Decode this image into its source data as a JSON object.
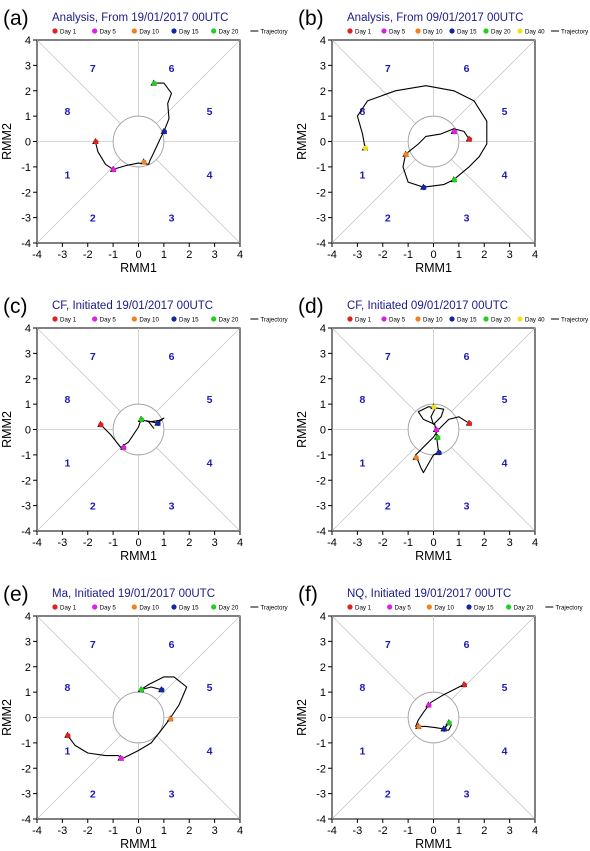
{
  "colors": {
    "day1": "#e3201b",
    "day5": "#e020e0",
    "day10": "#f08020",
    "day15": "#1028a0",
    "day20": "#20d020",
    "day40": "#f0e020",
    "phase_number": "#1a1ab8",
    "title": "#1a1a8c",
    "diagonal": "#c8c8c8",
    "circle": "#a0a0a0",
    "trajectory": "#000000"
  },
  "axis": {
    "xlabel": "RMM1",
    "ylabel": "RMM2",
    "xlim": [
      -4,
      4
    ],
    "ylim": [
      -4,
      4
    ],
    "ticks": [
      "-4",
      "-3",
      "-2",
      "-1",
      "0",
      "1",
      "2",
      "3",
      "4"
    ]
  },
  "chart_data": [
    {
      "id": "a",
      "letter": "(a)",
      "type": "line",
      "title": "Analysis, From 19/01/2017 00UTC",
      "legend": [
        {
          "label": "Day 1",
          "color": "day1"
        },
        {
          "label": "Day 5",
          "color": "day5"
        },
        {
          "label": "Day 10",
          "color": "day10"
        },
        {
          "label": "Day 15",
          "color": "day15"
        },
        {
          "label": "Day 20",
          "color": "day20"
        },
        {
          "label": "Trajectory",
          "color": "trajectory",
          "line": true
        }
      ],
      "phases": [
        "1",
        "2",
        "3",
        "4",
        "5",
        "6",
        "7",
        "8"
      ],
      "trajectory": [
        [
          -1.7,
          0.0
        ],
        [
          -1.6,
          -0.4
        ],
        [
          -1.3,
          -0.9
        ],
        [
          -1.0,
          -1.1
        ],
        [
          -0.5,
          -0.95
        ],
        [
          0.0,
          -0.85
        ],
        [
          0.4,
          -0.9
        ],
        [
          0.45,
          -0.75
        ],
        [
          0.6,
          -0.45
        ],
        [
          0.85,
          0.1
        ],
        [
          1.0,
          0.4
        ],
        [
          1.2,
          0.9
        ],
        [
          1.15,
          1.5
        ],
        [
          1.3,
          1.9
        ],
        [
          1.0,
          2.3
        ],
        [
          0.6,
          2.3
        ]
      ],
      "markers": [
        {
          "day": "Day 1",
          "x": -1.7,
          "y": 0.0,
          "color": "day1"
        },
        {
          "day": "Day 5",
          "x": -1.0,
          "y": -1.1,
          "color": "day5"
        },
        {
          "day": "Day 10",
          "x": 0.2,
          "y": -0.8,
          "color": "day10"
        },
        {
          "day": "Day 15",
          "x": 1.0,
          "y": 0.4,
          "color": "day15"
        },
        {
          "day": "Day 20",
          "x": 0.6,
          "y": 2.3,
          "color": "day20"
        }
      ]
    },
    {
      "id": "b",
      "letter": "(b)",
      "type": "line",
      "title": "Analysis, From 09/01/2017 00UTC",
      "legend": [
        {
          "label": "Day 1",
          "color": "day1"
        },
        {
          "label": "Day 5",
          "color": "day5"
        },
        {
          "label": "Day 10",
          "color": "day10"
        },
        {
          "label": "Day 15",
          "color": "day15"
        },
        {
          "label": "Day 20",
          "color": "day20"
        },
        {
          "label": "Day 40",
          "color": "day40"
        },
        {
          "label": "Trajectory",
          "color": "trajectory",
          "line": true
        }
      ],
      "phases": [
        "1",
        "2",
        "3",
        "4",
        "5",
        "6",
        "7",
        "8"
      ],
      "trajectory": [
        [
          1.4,
          0.1
        ],
        [
          1.2,
          0.4
        ],
        [
          0.8,
          0.5
        ],
        [
          0.3,
          0.3
        ],
        [
          -0.3,
          0.2
        ],
        [
          -0.6,
          -0.1
        ],
        [
          -1.1,
          -0.5
        ],
        [
          -1.2,
          -1.0
        ],
        [
          -1.0,
          -1.6
        ],
        [
          -0.4,
          -1.8
        ],
        [
          0.4,
          -1.7
        ],
        [
          0.8,
          -1.5
        ],
        [
          1.4,
          -1.0
        ],
        [
          1.8,
          -0.6
        ],
        [
          2.1,
          -0.1
        ],
        [
          2.1,
          0.8
        ],
        [
          1.6,
          1.6
        ],
        [
          0.8,
          2.0
        ],
        [
          -0.3,
          2.2
        ],
        [
          -1.5,
          2.0
        ],
        [
          -2.6,
          1.6
        ],
        [
          -3.0,
          1.0
        ],
        [
          -2.8,
          0.3
        ],
        [
          -2.7,
          -0.25
        ]
      ],
      "markers": [
        {
          "day": "Day 1",
          "x": 1.4,
          "y": 0.1,
          "color": "day1"
        },
        {
          "day": "Day 5",
          "x": 0.8,
          "y": 0.4,
          "color": "day5"
        },
        {
          "day": "Day 10",
          "x": -1.1,
          "y": -0.5,
          "color": "day10"
        },
        {
          "day": "Day 15",
          "x": -0.4,
          "y": -1.8,
          "color": "day15"
        },
        {
          "day": "Day 20",
          "x": 0.8,
          "y": -1.5,
          "color": "day20"
        },
        {
          "day": "Day 40",
          "x": -2.7,
          "y": -0.25,
          "color": "day40"
        }
      ]
    },
    {
      "id": "c",
      "letter": "(c)",
      "type": "line",
      "title": "CF, Initiated 19/01/2017 00UTC",
      "legend": [
        {
          "label": "Day 1",
          "color": "day1"
        },
        {
          "label": "Day 5",
          "color": "day5"
        },
        {
          "label": "Day 10",
          "color": "day10"
        },
        {
          "label": "Day 15",
          "color": "day15"
        },
        {
          "label": "Day 20",
          "color": "day20"
        },
        {
          "label": "Trajectory",
          "color": "trajectory",
          "line": true
        }
      ],
      "phases": [
        "1",
        "2",
        "3",
        "4",
        "5",
        "6",
        "7",
        "8"
      ],
      "trajectory": [
        [
          -1.5,
          0.2
        ],
        [
          -1.1,
          -0.2
        ],
        [
          -0.7,
          -0.7
        ],
        [
          -0.4,
          -0.5
        ],
        [
          0.0,
          0.1
        ],
        [
          0.1,
          0.4
        ],
        [
          0.4,
          0.3
        ],
        [
          0.6,
          0.05
        ],
        [
          0.4,
          0.3
        ],
        [
          0.8,
          0.35
        ],
        [
          1.0,
          0.45
        ],
        [
          0.75,
          0.25
        ],
        [
          0.3,
          0.35
        ]
      ],
      "markers": [
        {
          "day": "Day 1",
          "x": -1.5,
          "y": 0.2,
          "color": "day1"
        },
        {
          "day": "Day 5",
          "x": -0.6,
          "y": -0.7,
          "color": "day5"
        },
        {
          "day": "Day 10",
          "x": 0.1,
          "y": 0.4,
          "color": "day10"
        },
        {
          "day": "Day 15",
          "x": 0.75,
          "y": 0.25,
          "color": "day15"
        },
        {
          "day": "Day 20",
          "x": 0.1,
          "y": 0.4,
          "color": "day20"
        }
      ]
    },
    {
      "id": "d",
      "letter": "(d)",
      "type": "line",
      "title": "CF, Initiated 09/01/2017 00UTC",
      "legend": [
        {
          "label": "Day 1",
          "color": "day1"
        },
        {
          "label": "Day 5",
          "color": "day5"
        },
        {
          "label": "Day 10",
          "color": "day10"
        },
        {
          "label": "Day 15",
          "color": "day15"
        },
        {
          "label": "Day 20",
          "color": "day20"
        },
        {
          "label": "Day 40",
          "color": "day40"
        },
        {
          "label": "Trajectory",
          "color": "trajectory",
          "line": true
        }
      ],
      "phases": [
        "1",
        "2",
        "3",
        "4",
        "5",
        "6",
        "7",
        "8"
      ],
      "trajectory": [
        [
          1.4,
          0.25
        ],
        [
          1.0,
          0.5
        ],
        [
          0.6,
          0.4
        ],
        [
          0.2,
          0.0
        ],
        [
          0.0,
          -0.3
        ],
        [
          -0.3,
          -0.6
        ],
        [
          -0.7,
          -1.0
        ],
        [
          -0.5,
          -1.5
        ],
        [
          -0.4,
          -1.7
        ],
        [
          0.0,
          -1.0
        ],
        [
          0.2,
          -0.9
        ],
        [
          0.15,
          -0.5
        ],
        [
          0.05,
          0.2
        ],
        [
          -0.4,
          0.4
        ],
        [
          -0.6,
          0.7
        ],
        [
          -0.2,
          0.9
        ],
        [
          0.4,
          0.8
        ],
        [
          0.3,
          0.5
        ],
        [
          0.0,
          0.2
        ],
        [
          -0.1,
          0.5
        ],
        [
          0.1,
          0.9
        ],
        [
          0.0,
          0.9
        ]
      ],
      "markers": [
        {
          "day": "Day 1",
          "x": 1.4,
          "y": 0.25,
          "color": "day1"
        },
        {
          "day": "Day 5",
          "x": 0.1,
          "y": 0.0,
          "color": "day5"
        },
        {
          "day": "Day 10",
          "x": -0.7,
          "y": -1.1,
          "color": "day10"
        },
        {
          "day": "Day 15",
          "x": 0.2,
          "y": -0.9,
          "color": "day15"
        },
        {
          "day": "Day 20",
          "x": 0.15,
          "y": -0.3,
          "color": "day20"
        },
        {
          "day": "Day 40",
          "x": 0.0,
          "y": 0.9,
          "color": "day40"
        }
      ]
    },
    {
      "id": "e",
      "letter": "(e)",
      "type": "line",
      "title": "Ma, Initiated  19/01/2017 00UTC",
      "legend": [
        {
          "label": "Day 1",
          "color": "day1"
        },
        {
          "label": "Day 5",
          "color": "day5"
        },
        {
          "label": "Day 10",
          "color": "day10"
        },
        {
          "label": "Day 15",
          "color": "day15"
        },
        {
          "label": "Day 20",
          "color": "day20"
        },
        {
          "label": "Trajectory",
          "color": "trajectory",
          "line": true
        }
      ],
      "phases": [
        "1",
        "2",
        "3",
        "4",
        "5",
        "6",
        "7",
        "8"
      ],
      "trajectory": [
        [
          -2.8,
          -0.7
        ],
        [
          -2.5,
          -1.1
        ],
        [
          -2.0,
          -1.4
        ],
        [
          -1.3,
          -1.5
        ],
        [
          -0.8,
          -1.5
        ],
        [
          -0.6,
          -1.6
        ],
        [
          0.0,
          -1.3
        ],
        [
          0.5,
          -1.0
        ],
        [
          0.9,
          -0.5
        ],
        [
          1.2,
          -0.1
        ],
        [
          1.6,
          0.5
        ],
        [
          1.9,
          1.2
        ],
        [
          1.4,
          1.6
        ],
        [
          1.0,
          1.6
        ],
        [
          0.4,
          1.3
        ],
        [
          0.1,
          1.1
        ],
        [
          0.5,
          1.2
        ],
        [
          0.9,
          1.1
        ]
      ],
      "markers": [
        {
          "day": "Day 1",
          "x": -2.8,
          "y": -0.7,
          "color": "day1"
        },
        {
          "day": "Day 5",
          "x": -0.7,
          "y": -1.6,
          "color": "day5"
        },
        {
          "day": "Day 10",
          "x": 1.25,
          "y": -0.05,
          "color": "day10"
        },
        {
          "day": "Day 15",
          "x": 0.9,
          "y": 1.1,
          "color": "day15"
        },
        {
          "day": "Day 20",
          "x": 0.1,
          "y": 1.1,
          "color": "day20"
        }
      ]
    },
    {
      "id": "f",
      "letter": "(f)",
      "type": "line",
      "title": "NQ, Initiated 19/01/2017 00UTC",
      "legend": [
        {
          "label": "Day 1",
          "color": "day1"
        },
        {
          "label": "Day 5",
          "color": "day5"
        },
        {
          "label": "Day 10",
          "color": "day10"
        },
        {
          "label": "Day 15",
          "color": "day15"
        },
        {
          "label": "Day 20",
          "color": "day20"
        },
        {
          "label": "Trajectory",
          "color": "trajectory",
          "line": true
        }
      ],
      "phases": [
        "1",
        "2",
        "3",
        "4",
        "5",
        "6",
        "7",
        "8"
      ],
      "trajectory": [
        [
          1.2,
          1.3
        ],
        [
          0.8,
          1.1
        ],
        [
          0.4,
          0.9
        ],
        [
          -0.1,
          0.6
        ],
        [
          -0.4,
          0.2
        ],
        [
          -0.6,
          -0.1
        ],
        [
          -0.7,
          -0.35
        ],
        [
          -0.3,
          -0.35
        ],
        [
          0.1,
          -0.4
        ],
        [
          0.4,
          -0.45
        ],
        [
          0.6,
          -0.2
        ],
        [
          0.4,
          -0.5
        ],
        [
          0.6,
          -0.5
        ],
        [
          0.7,
          -0.3
        ]
      ],
      "markers": [
        {
          "day": "Day 1",
          "x": 1.2,
          "y": 1.3,
          "color": "day1"
        },
        {
          "day": "Day 5",
          "x": -0.2,
          "y": 0.5,
          "color": "day5"
        },
        {
          "day": "Day 10",
          "x": -0.6,
          "y": -0.35,
          "color": "day10"
        },
        {
          "day": "Day 15",
          "x": 0.4,
          "y": -0.45,
          "color": "day15"
        },
        {
          "day": "Day 20",
          "x": 0.6,
          "y": -0.2,
          "color": "day20"
        }
      ]
    }
  ]
}
